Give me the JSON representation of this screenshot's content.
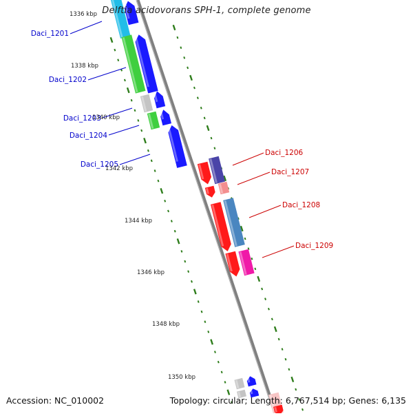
{
  "title": "Delftia acidovorans SPH-1, complete genome",
  "accession": "Accession: NC_010002",
  "summary": "Topology: circular; Length: 6,767,514 bp; Genes: 6,135",
  "colors": {
    "backbone": "#808080",
    "tick": "#2e7d1b",
    "forward_label": "#0000cc",
    "reverse_label": "#cc0000"
  },
  "kbp_labels": [
    "1336 kbp",
    "1338 kbp",
    "1340 kbp",
    "1342 kbp",
    "1344 kbp",
    "1346 kbp",
    "1348 kbp",
    "1350 kbp"
  ],
  "genes": [
    {
      "id": "Daci_1201",
      "strand": "forward"
    },
    {
      "id": "Daci_1202",
      "strand": "forward"
    },
    {
      "id": "Daci_1203",
      "strand": "forward"
    },
    {
      "id": "Daci_1204",
      "strand": "forward"
    },
    {
      "id": "Daci_1205",
      "strand": "forward"
    },
    {
      "id": "Daci_1206",
      "strand": "reverse"
    },
    {
      "id": "Daci_1207",
      "strand": "reverse"
    },
    {
      "id": "Daci_1208",
      "strand": "reverse"
    },
    {
      "id": "Daci_1209",
      "strand": "reverse"
    }
  ]
}
